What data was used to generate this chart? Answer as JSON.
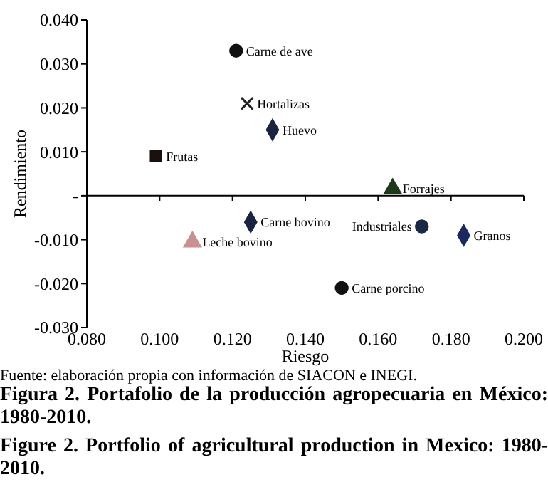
{
  "chart_data": {
    "type": "scatter",
    "title": "Figura 2. Portafolio de la producción agropecuaria en México: 1980-2010.",
    "subtitle": "Figure 2. Portfolio of agricultural production in Mexico: 1980-2010.",
    "xlabel": "Riesgo",
    "ylabel": "Rendimiento",
    "annotations": [
      "Fuente: elaboración propia con información de SIACON e INEGI."
    ],
    "xlim": [
      0.08,
      0.2
    ],
    "xticks": [
      {
        "value": 0.08,
        "label": "0.080"
      },
      {
        "value": 0.1,
        "label": "0.100"
      },
      {
        "value": 0.12,
        "label": "0.120"
      },
      {
        "value": 0.14,
        "label": "0.140"
      },
      {
        "value": 0.16,
        "label": "0.160"
      },
      {
        "value": 0.18,
        "label": "0.180"
      },
      {
        "value": 0.2,
        "label": "0.200"
      }
    ],
    "ylim": [
      -0.03,
      0.04
    ],
    "yticks": [
      {
        "value": -0.03,
        "label": "-0.030"
      },
      {
        "value": -0.02,
        "label": "-0.020"
      },
      {
        "value": -0.01,
        "label": "-0.010"
      },
      {
        "value": 0,
        "label": "-"
      },
      {
        "value": 0.01,
        "label": "0.010"
      },
      {
        "value": 0.02,
        "label": "0.020"
      },
      {
        "value": 0.03,
        "label": "0.030"
      },
      {
        "value": 0.04,
        "label": "0.040"
      }
    ],
    "series": [
      {
        "name": "Carne de ave",
        "color": "#111111",
        "marker": "circle",
        "x": [
          0.121
        ],
        "values": [
          0.033
        ]
      },
      {
        "name": "Hortalizas",
        "color": "#222222",
        "marker": "cross",
        "x": [
          0.124
        ],
        "values": [
          0.021
        ]
      },
      {
        "name": "Huevo",
        "color": "#1a2440",
        "marker": "diamond",
        "x": [
          0.131
        ],
        "values": [
          0.015
        ]
      },
      {
        "name": "Frutas",
        "color": "#1a1010",
        "marker": "square",
        "x": [
          0.099
        ],
        "values": [
          0.009
        ]
      },
      {
        "name": "Carne bovino",
        "color": "#1a2440",
        "marker": "diamond",
        "x": [
          0.125
        ],
        "values": [
          -0.006
        ]
      },
      {
        "name": "Leche bovino",
        "color": "#c89090",
        "marker": "triangle",
        "x": [
          0.109
        ],
        "values": [
          -0.0105
        ]
      },
      {
        "name": "Forrajes",
        "color": "#1f3a1a",
        "marker": "triangle",
        "x": [
          0.164
        ],
        "values": [
          0.0016
        ]
      },
      {
        "name": "Industriales",
        "color": "#1a2a44",
        "marker": "circle",
        "x": [
          0.172
        ],
        "values": [
          -0.007
        ]
      },
      {
        "name": "Granos",
        "color": "#1a2a60",
        "marker": "diamond",
        "x": [
          0.1835
        ],
        "values": [
          -0.009
        ]
      },
      {
        "name": "Carne porcino",
        "color": "#111111",
        "marker": "circle",
        "x": [
          0.15
        ],
        "values": [
          -0.021
        ]
      }
    ]
  }
}
